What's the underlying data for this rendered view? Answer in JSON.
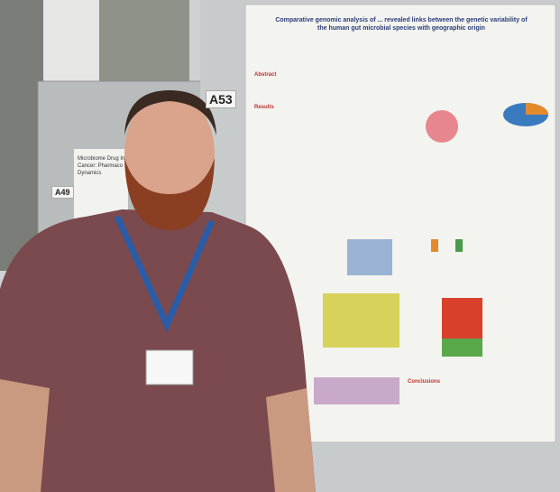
{
  "signs": {
    "main_board": "A53",
    "left_board": "A49"
  },
  "poster": {
    "title": "Comparative genomic analysis of ... revealed links between the genetic variability of the human gut microbial species with geographic origin",
    "sections": [
      "Abstract",
      "Results",
      "Conclusions"
    ]
  },
  "left_poster": {
    "lines": [
      "Microbiome Drug In",
      "Cancer: Pharmaco",
      "Dynamics"
    ]
  }
}
